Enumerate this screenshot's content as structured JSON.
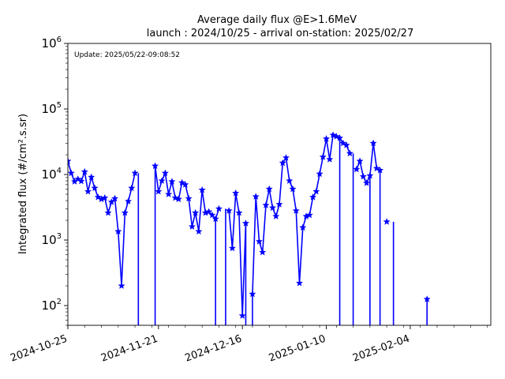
{
  "chart_data": {
    "type": "line",
    "title": "Average daily flux @E>1.6MeV",
    "subtitle": "launch : 2024/10/25 - arrival on-station: 2025/02/27",
    "annotation": "Update: 2025/05/22-09:08:52",
    "ylabel": "Integrated flux (#/cm².s.sr)",
    "xlabel": "",
    "y_scale": "log",
    "ylim": [
      50,
      1000000
    ],
    "xlim": [
      "2024-10-25",
      "2025-02-28"
    ],
    "grid": false,
    "x_tick_labels": [
      "2024-10-25",
      "2024-11-21",
      "2024-12-16",
      "2025-01-10",
      "2025-02-04"
    ],
    "y_tick_labels": [
      {
        "base": "10",
        "exp": "2",
        "value": 100
      },
      {
        "base": "10",
        "exp": "3",
        "value": 1000
      },
      {
        "base": "10",
        "exp": "4",
        "value": 10000
      },
      {
        "base": "10",
        "exp": "5",
        "value": 100000
      },
      {
        "base": "10",
        "exp": "6",
        "value": 1000000
      }
    ],
    "series": [
      {
        "color": "#0000ff",
        "marker": "star",
        "x": [
          "2024-10-25",
          "2024-10-26",
          "2024-10-27",
          "2024-10-28",
          "2024-10-29",
          "2024-10-30",
          "2024-10-31",
          "2024-11-01",
          "2024-11-02",
          "2024-11-03",
          "2024-11-04",
          "2024-11-05",
          "2024-11-06",
          "2024-11-07",
          "2024-11-08",
          "2024-11-09",
          "2024-11-10",
          "2024-11-11",
          "2024-11-12",
          "2024-11-13",
          "2024-11-14",
          "2024-11-15",
          "2024-11-16",
          "2024-11-17",
          "2024-11-18",
          "2024-11-19",
          "2024-11-20",
          "2024-11-21",
          "2024-11-22",
          "2024-11-23",
          "2024-11-24",
          "2024-11-25",
          "2024-11-26",
          "2024-11-27",
          "2024-11-28",
          "2024-11-29",
          "2024-11-30",
          "2024-12-01",
          "2024-12-02",
          "2024-12-03",
          "2024-12-04",
          "2024-12-05",
          "2024-12-06",
          "2024-12-07",
          "2024-12-08",
          "2024-12-09",
          "2024-12-10",
          "2024-12-11",
          "2024-12-12",
          "2024-12-13",
          "2024-12-14",
          "2024-12-15",
          "2024-12-16",
          "2024-12-17",
          "2024-12-18",
          "2024-12-19",
          "2024-12-20",
          "2024-12-21",
          "2024-12-22",
          "2024-12-23",
          "2024-12-24",
          "2024-12-25",
          "2024-12-26",
          "2024-12-27",
          "2024-12-28",
          "2024-12-29",
          "2024-12-30",
          "2024-12-31",
          "2025-01-01",
          "2025-01-02",
          "2025-01-03",
          "2025-01-04",
          "2025-01-05",
          "2025-01-06",
          "2025-01-07",
          "2025-01-08",
          "2025-01-09",
          "2025-01-10",
          "2025-01-11",
          "2025-01-12",
          "2025-01-13",
          "2025-01-14",
          "2025-01-15",
          "2025-01-16",
          "2025-01-17",
          "2025-01-18",
          "2025-01-19",
          "2025-01-20",
          "2025-01-21",
          "2025-01-22",
          "2025-01-23",
          "2025-01-24",
          "2025-01-25",
          "2025-01-26",
          "2025-01-27",
          "2025-01-28",
          "2025-01-29",
          "2025-01-30",
          "2025-01-31",
          "2025-02-01",
          "2025-02-02",
          "2025-02-03",
          "2025-02-04",
          "2025-02-05",
          "2025-02-06",
          "2025-02-07",
          "2025-02-08",
          "2025-02-09"
        ],
        "y": [
          16000,
          10500,
          7800,
          8500,
          7900,
          11000,
          5500,
          9100,
          6200,
          4500,
          4200,
          4400,
          2600,
          3800,
          4300,
          1350,
          200,
          2600,
          3900,
          6200,
          10500,
          null,
          null,
          null,
          null,
          null,
          13500,
          5500,
          8000,
          10500,
          5000,
          7800,
          4400,
          4200,
          7500,
          7000,
          4300,
          1600,
          2600,
          1350,
          5800,
          2600,
          2700,
          2400,
          2100,
          3000,
          null,
          null,
          2800,
          750,
          5200,
          2600,
          70,
          1800,
          null,
          150,
          4600,
          950,
          650,
          3400,
          6000,
          3100,
          2300,
          3500,
          15000,
          18000,
          8000,
          6000,
          2800,
          220,
          1550,
          2300,
          2400,
          4500,
          5500,
          10200,
          18500,
          35000,
          17000,
          40000,
          38000,
          36000,
          30000,
          28000,
          21000,
          null,
          12000,
          16000,
          9300,
          7400,
          9600,
          30000,
          12400,
          11600,
          null,
          1900,
          null,
          null,
          null,
          null,
          null,
          null,
          null,
          null,
          null,
          null,
          null,
          125
        ]
      }
    ],
    "drops": [
      "2024-11-15",
      "2024-11-20",
      "2024-12-08",
      "2024-12-11",
      "2024-12-17",
      "2024-12-19",
      "2025-01-14",
      "2025-01-18",
      "2025-01-23",
      "2025-01-26",
      "2025-01-30",
      "2025-02-09"
    ]
  }
}
